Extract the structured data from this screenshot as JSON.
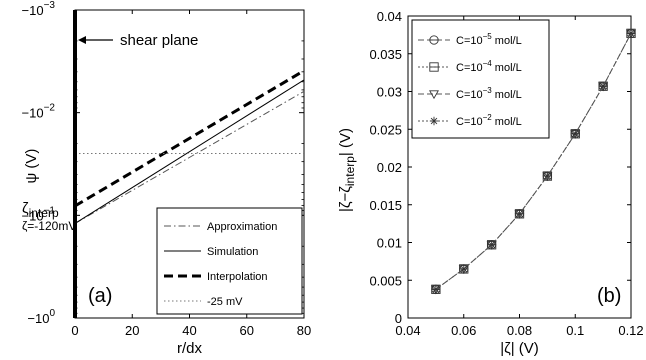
{
  "chart_data": [
    {
      "id": "a",
      "type": "line",
      "panel_label": "(a)",
      "xlabel": "r/dx",
      "ylabel": "ψ (V)",
      "xlim": [
        0,
        80
      ],
      "x_ticks": [
        "0",
        "20",
        "40",
        "60",
        "80"
      ],
      "y_scale": "log (magnitude, reversed)",
      "ylim": [
        -0.001,
        -1
      ],
      "y_ticks": [
        {
          "value": -0.001,
          "base": "−10",
          "exp": "−3"
        },
        {
          "value": -0.01,
          "base": "−10",
          "exp": "−2"
        },
        {
          "value": -0.1,
          "base": "−10",
          "exp": "−1"
        },
        {
          "value": -1,
          "base": "−10",
          "exp": "0"
        }
      ],
      "legend_position": "bottom-right",
      "series": [
        {
          "name": "Approximation",
          "style": "dash-dot",
          "color": "#555555",
          "x": [
            0,
            80
          ],
          "y": [
            -0.12,
            -0.0062
          ]
        },
        {
          "name": "Simulation",
          "style": "solid",
          "color": "#000000",
          "x": [
            0,
            80
          ],
          "y": [
            -0.12,
            -0.0048
          ]
        },
        {
          "name": "Interpolation",
          "style": "dashed-bold",
          "color": "#000000",
          "x": [
            0,
            80
          ],
          "y": [
            -0.081,
            -0.0039
          ]
        },
        {
          "name": "-25 mV",
          "style": "dotted",
          "color": "#777777",
          "x": [
            0,
            80
          ],
          "y": [
            -0.025,
            -0.025
          ]
        }
      ],
      "annotations": {
        "shear_plane": "shear plane",
        "zeta_interp_main": "ζ",
        "zeta_interp_sub": "interp",
        "zeta_value": "ζ=-120mV"
      }
    },
    {
      "id": "b",
      "type": "scatter",
      "panel_label": "(b)",
      "xlabel": "|ζ| (V)",
      "ylabel": "|ζ−ζinterp| (V)",
      "ylabel_main": "|ζ−ζ",
      "ylabel_sub": "interp",
      "ylabel_end": "| (V)",
      "xlim": [
        0.04,
        0.12
      ],
      "ylim": [
        0,
        0.04
      ],
      "x_ticks": [
        "0.04",
        "0.06",
        "0.08",
        "0.1",
        "0.12"
      ],
      "y_ticks": [
        "0",
        "0.005",
        "0.01",
        "0.015",
        "0.02",
        "0.025",
        "0.03",
        "0.035",
        "0.04"
      ],
      "legend_position": "top-left",
      "x": [
        0.05,
        0.06,
        0.07,
        0.08,
        0.09,
        0.1,
        0.11,
        0.12
      ],
      "series": [
        {
          "name": "C=10^-5 mol/L",
          "legend_prefix": "C=10",
          "legend_exp": "−5",
          "legend_suffix": " mol/L",
          "marker": "circle",
          "y": [
            0.0038,
            0.0065,
            0.0097,
            0.0138,
            0.0188,
            0.0244,
            0.0307,
            0.0377
          ]
        },
        {
          "name": "C=10^-4 mol/L",
          "legend_prefix": "C=10",
          "legend_exp": "−4",
          "legend_suffix": " mol/L",
          "marker": "square",
          "y": [
            0.0038,
            0.0065,
            0.0097,
            0.0138,
            0.0188,
            0.0244,
            0.0307,
            0.0377
          ]
        },
        {
          "name": "C=10^-3 mol/L",
          "legend_prefix": "C=10",
          "legend_exp": "−3",
          "legend_suffix": " mol/L",
          "marker": "triangle-down",
          "y": [
            0.0038,
            0.0065,
            0.0097,
            0.0138,
            0.0188,
            0.0244,
            0.0307,
            0.0377
          ]
        },
        {
          "name": "C=10^-2 mol/L",
          "legend_prefix": "C=10",
          "legend_exp": "−2",
          "legend_suffix": " mol/L",
          "marker": "star",
          "y": [
            0.0038,
            0.0065,
            0.0097,
            0.0138,
            0.0188,
            0.0244,
            0.0307,
            0.0377
          ]
        }
      ]
    }
  ]
}
